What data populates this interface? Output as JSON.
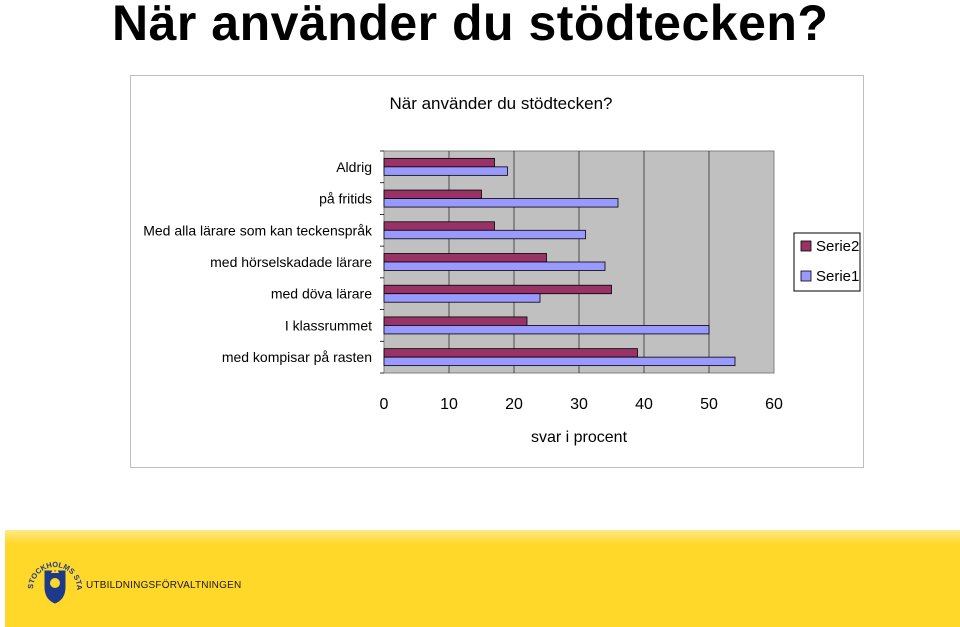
{
  "page": {
    "title": "När använder du stödtecken?"
  },
  "footer": {
    "org_name": "UTBILDNINGSFÖRVALTNINGEN",
    "emblem_text": "STOCKHOLMS STAD",
    "colors": {
      "band": "#ffd829",
      "emblem": "#1d3a8a"
    }
  },
  "chart_data": {
    "type": "bar",
    "orientation": "horizontal",
    "title": "När använder du stödtecken?",
    "xlabel": "svar i procent",
    "ylabel": "",
    "xlim": [
      0,
      60
    ],
    "xticks": [
      0,
      10,
      20,
      30,
      40,
      50,
      60
    ],
    "grid": "vertical",
    "legend_position": "right",
    "categories": [
      "Aldrig",
      "på fritids",
      "Med alla lärare som kan teckenspråk",
      "med hörselskadade lärare",
      "med döva lärare",
      "I klassrummet",
      "med kompisar på rasten"
    ],
    "series": [
      {
        "name": "Serie2",
        "color": "#993366",
        "values": [
          17,
          15,
          17,
          25,
          35,
          22,
          39
        ]
      },
      {
        "name": "Serie1",
        "color": "#9999ff",
        "values": [
          19,
          36,
          31,
          34,
          24,
          50,
          54
        ]
      }
    ],
    "colors": {
      "plot_bg": "#c0c0c0",
      "gridline": "#000000"
    }
  }
}
